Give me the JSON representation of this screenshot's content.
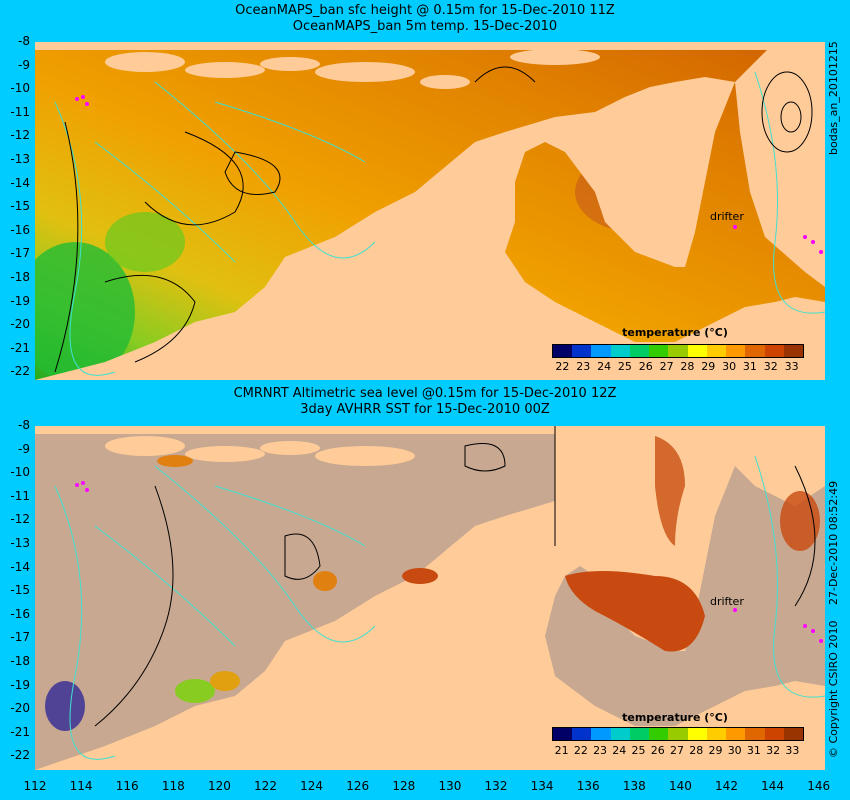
{
  "top": {
    "title1": "OceanMAPS_ban sfc height @ 0.15m for 15-Dec-2010 11Z",
    "title2": "OceanMAPS_ban 5m temp. 15-Dec-2010",
    "side_label": "bodas_an_20101215",
    "legend_title": "temperature (°C)",
    "legend_ticks": [
      "22",
      "23",
      "24",
      "25",
      "26",
      "27",
      "28",
      "29",
      "30",
      "31",
      "32",
      "33"
    ],
    "drifter_label": "drifter"
  },
  "bottom": {
    "title1": "CMRNRT Altimetric sea level  @0.15m  for 15-Dec-2010 12Z",
    "title2": "3day AVHRR SST for 15-Dec-2010 00Z",
    "side_label": "27-Dec-2010 08:52:49",
    "copyright": "© Copyright CSIRO 2010",
    "legend_title": "temperature (°C)",
    "legend_ticks": [
      "21",
      "22",
      "23",
      "24",
      "25",
      "26",
      "27",
      "28",
      "29",
      "30",
      "31",
      "32",
      "33"
    ],
    "drifter_label": "drifter"
  },
  "lat_labels": [
    "-8",
    "-9",
    "-10",
    "-11",
    "-12",
    "-13",
    "-14",
    "-15",
    "-16",
    "-17",
    "-18",
    "-19",
    "-20",
    "-21",
    "-22"
  ],
  "lon_labels": [
    "112",
    "114",
    "116",
    "118",
    "120",
    "122",
    "124",
    "126",
    "128",
    "130",
    "132",
    "134",
    "136",
    "138",
    "140",
    "142",
    "144",
    "146"
  ],
  "colors": {
    "background": "#00ccff",
    "land": "#ffcc99",
    "no_data": "#c8a890",
    "contour_cyan": "#40e0d0",
    "contour_black": "#000000",
    "drifter": "#ff00ff",
    "scale": [
      "#000066",
      "#0033cc",
      "#0099ff",
      "#00cccc",
      "#00cc66",
      "#33cc00",
      "#99cc00",
      "#ffff00",
      "#ffcc00",
      "#ff9900",
      "#e06600",
      "#cc4400",
      "#993300"
    ]
  }
}
